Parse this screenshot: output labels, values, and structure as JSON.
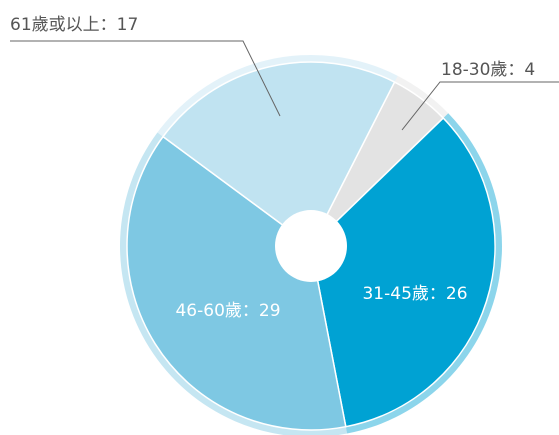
{
  "chart_data": {
    "type": "pie",
    "values": [
      4,
      26,
      29,
      17
    ],
    "value_labels": [
      "18-30歲：4",
      "31-45歲：26",
      "46-60歲：29",
      "61歲或以上：17"
    ],
    "colors": [
      "#e3e3e3",
      "#00a2d3",
      "#7ec8e3",
      "#c0e3f1"
    ]
  }
}
